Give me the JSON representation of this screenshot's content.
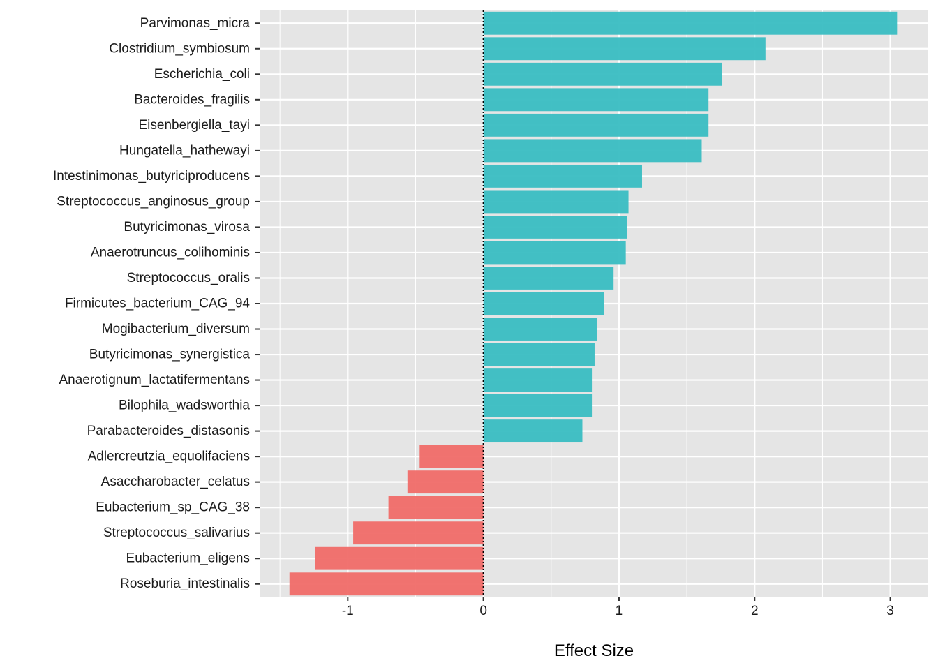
{
  "chart_data": {
    "type": "bar",
    "orientation": "horizontal",
    "categories": [
      "Parvimonas_micra",
      "Clostridium_symbiosum",
      "Escherichia_coli",
      "Bacteroides_fragilis",
      "Eisenbergiella_tayi",
      "Hungatella_hathewayi",
      "Intestinimonas_butyriciproducens",
      "Streptococcus_anginosus_group",
      "Butyricimonas_virosa",
      "Anaerotruncus_colihominis",
      "Streptococcus_oralis",
      "Firmicutes_bacterium_CAG_94",
      "Mogibacterium_diversum",
      "Butyricimonas_synergistica",
      "Anaerotignum_lactatifermentans",
      "Bilophila_wadsworthia",
      "Parabacteroides_distasonis",
      "Adlercreutzia_equolifaciens",
      "Asaccharobacter_celatus",
      "Eubacterium_sp_CAG_38",
      "Streptococcus_salivarius",
      "Eubacterium_eligens",
      "Roseburia_intestinalis"
    ],
    "values": [
      3.05,
      2.08,
      1.76,
      1.66,
      1.66,
      1.61,
      1.17,
      1.07,
      1.06,
      1.05,
      0.96,
      0.89,
      0.84,
      0.82,
      0.8,
      0.8,
      0.73,
      -0.47,
      -0.56,
      -0.7,
      -0.96,
      -1.24,
      -1.43
    ],
    "xlabel": "Effect Size",
    "ylabel": "",
    "title": "",
    "xlim": [
      -1.65,
      3.28
    ],
    "x_ticks": [
      -1,
      0,
      1,
      2,
      3
    ],
    "x_tick_labels": [
      "-1",
      "0",
      "1",
      "2",
      "3"
    ],
    "grid": true,
    "legend": "none",
    "reference_line": {
      "x": 0,
      "style": "dotted"
    },
    "colors": {
      "positive": "#39BDC2",
      "negative": "#F06B68",
      "panel_background": "#E5E5E5",
      "grid": "#FFFFFF"
    }
  }
}
